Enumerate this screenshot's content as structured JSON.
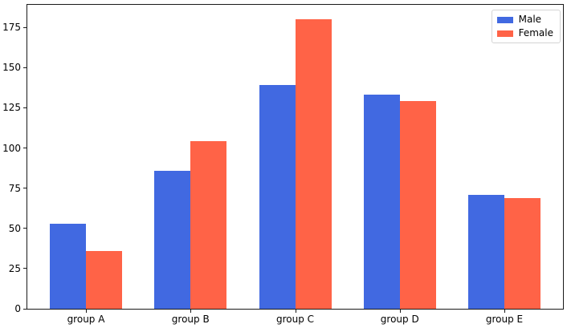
{
  "figure": {
    "background": "#ffffff",
    "spine_color": "#1a1a1a",
    "text_color": "#000000"
  },
  "chart_data": {
    "type": "bar",
    "title": "",
    "xlabel": "",
    "ylabel": "",
    "categories": [
      "group A",
      "group B",
      "group C",
      "group D",
      "group E"
    ],
    "series": [
      {
        "name": "Male",
        "color": "#4169E1",
        "values": [
          53,
          86,
          139,
          133,
          71
        ]
      },
      {
        "name": "Female",
        "color": "#FF6347",
        "values": [
          36,
          104,
          180,
          129,
          69
        ]
      }
    ],
    "ylim": [
      0,
      189
    ],
    "yticks": [
      0,
      25,
      50,
      75,
      100,
      125,
      150,
      175
    ],
    "grid": false,
    "bar_width_fraction": 0.35,
    "legend": {
      "position": "upper-right",
      "entries": [
        "Male",
        "Female"
      ]
    }
  }
}
